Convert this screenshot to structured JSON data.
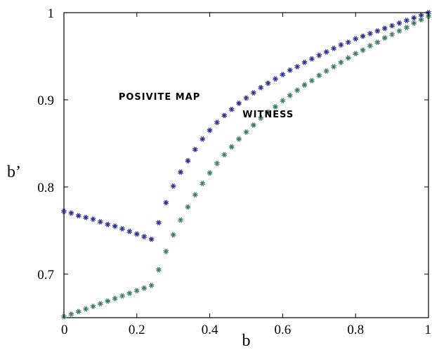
{
  "chart_data": {
    "type": "scatter",
    "xlabel": "b",
    "ylabel": "b’",
    "xlim": [
      0,
      1
    ],
    "ylim": [
      0.65,
      1
    ],
    "x_ticks": [
      "0",
      "0.2",
      "0.4",
      "0.6",
      "0.8",
      "1"
    ],
    "x_tick_values": [
      0,
      0.2,
      0.4,
      0.6,
      0.8,
      1
    ],
    "y_ticks": [
      "0.7",
      "0.8",
      "0.9",
      "1"
    ],
    "y_tick_values": [
      0.7,
      0.8,
      0.9,
      1
    ],
    "grid": false,
    "marker": "asterisk",
    "annotations": [
      {
        "text": "POSIVITE MAP",
        "x": 0.15,
        "y": 0.9,
        "series": 0
      },
      {
        "text": "WITNESS",
        "x": 0.49,
        "y": 0.88,
        "series": 1
      }
    ],
    "series": [
      {
        "color": "#2b2f92",
        "x": [
          0.0,
          0.02,
          0.04,
          0.06,
          0.08,
          0.1,
          0.12,
          0.14,
          0.16,
          0.18,
          0.2,
          0.22,
          0.24,
          0.26,
          0.28,
          0.3,
          0.32,
          0.34,
          0.36,
          0.38,
          0.4,
          0.42,
          0.44,
          0.46,
          0.48,
          0.5,
          0.52,
          0.54,
          0.56,
          0.58,
          0.6,
          0.62,
          0.64,
          0.66,
          0.68,
          0.7,
          0.72,
          0.74,
          0.76,
          0.78,
          0.8,
          0.82,
          0.84,
          0.86,
          0.88,
          0.9,
          0.92,
          0.94,
          0.96,
          0.98,
          1.0
        ],
        "y": [
          0.772,
          0.77,
          0.767,
          0.765,
          0.763,
          0.76,
          0.757,
          0.755,
          0.752,
          0.749,
          0.746,
          0.743,
          0.74,
          0.759,
          0.782,
          0.801,
          0.817,
          0.83,
          0.843,
          0.855,
          0.865,
          0.874,
          0.882,
          0.889,
          0.896,
          0.902,
          0.908,
          0.914,
          0.919,
          0.924,
          0.929,
          0.934,
          0.938,
          0.943,
          0.947,
          0.951,
          0.955,
          0.959,
          0.963,
          0.966,
          0.97,
          0.973,
          0.976,
          0.979,
          0.982,
          0.985,
          0.988,
          0.991,
          0.994,
          0.997,
          1.0
        ]
      },
      {
        "color": "#3b7a63",
        "x": [
          0.0,
          0.02,
          0.04,
          0.06,
          0.08,
          0.1,
          0.12,
          0.14,
          0.16,
          0.18,
          0.2,
          0.22,
          0.24,
          0.26,
          0.28,
          0.3,
          0.32,
          0.34,
          0.36,
          0.38,
          0.4,
          0.42,
          0.44,
          0.46,
          0.48,
          0.5,
          0.52,
          0.54,
          0.56,
          0.58,
          0.6,
          0.62,
          0.64,
          0.66,
          0.68,
          0.7,
          0.72,
          0.74,
          0.76,
          0.78,
          0.8,
          0.82,
          0.84,
          0.86,
          0.88,
          0.9,
          0.92,
          0.94,
          0.96,
          0.98,
          1.0
        ],
        "y": [
          0.651,
          0.654,
          0.657,
          0.66,
          0.663,
          0.666,
          0.669,
          0.672,
          0.675,
          0.678,
          0.681,
          0.684,
          0.687,
          0.705,
          0.726,
          0.745,
          0.762,
          0.777,
          0.791,
          0.804,
          0.816,
          0.827,
          0.837,
          0.846,
          0.855,
          0.863,
          0.871,
          0.879,
          0.886,
          0.892,
          0.899,
          0.905,
          0.911,
          0.917,
          0.922,
          0.928,
          0.933,
          0.938,
          0.943,
          0.948,
          0.953,
          0.957,
          0.962,
          0.966,
          0.971,
          0.975,
          0.979,
          0.983,
          0.988,
          0.992,
          0.996
        ]
      }
    ]
  }
}
